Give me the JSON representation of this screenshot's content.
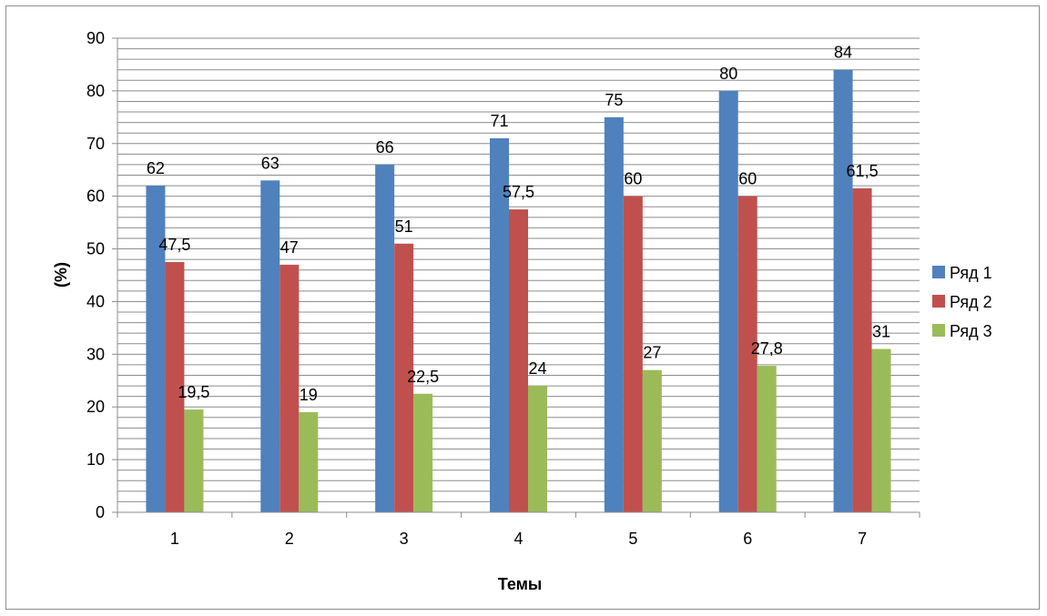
{
  "chart_data": {
    "type": "bar",
    "categories": [
      "1",
      "2",
      "3",
      "4",
      "5",
      "6",
      "7"
    ],
    "series": [
      {
        "name": "Ряд 1",
        "color": "#4f81bd",
        "values": [
          62,
          63,
          66,
          71,
          75,
          80,
          84
        ],
        "labels": [
          "62",
          "63",
          "66",
          "71",
          "75",
          "80",
          "84"
        ]
      },
      {
        "name": "Ряд 2",
        "color": "#c0504d",
        "values": [
          47.5,
          47,
          51,
          57.5,
          60,
          60,
          61.5
        ],
        "labels": [
          "47,5",
          "47",
          "51",
          "57,5",
          "60",
          "60",
          "61,5"
        ]
      },
      {
        "name": "Ряд 3",
        "color": "#9bbb59",
        "values": [
          19.5,
          19,
          22.5,
          24,
          27,
          27.8,
          31
        ],
        "labels": [
          "19,5",
          "19",
          "22,5",
          "24",
          "27",
          "27,8",
          "31"
        ]
      }
    ],
    "xlabel": "Темы",
    "ylabel": "(%)",
    "ylim": [
      0,
      90
    ],
    "yticks": [
      0,
      10,
      20,
      30,
      40,
      50,
      60,
      70,
      80,
      90
    ],
    "minor_grid_step": 2,
    "grid": true,
    "legend": "right"
  }
}
